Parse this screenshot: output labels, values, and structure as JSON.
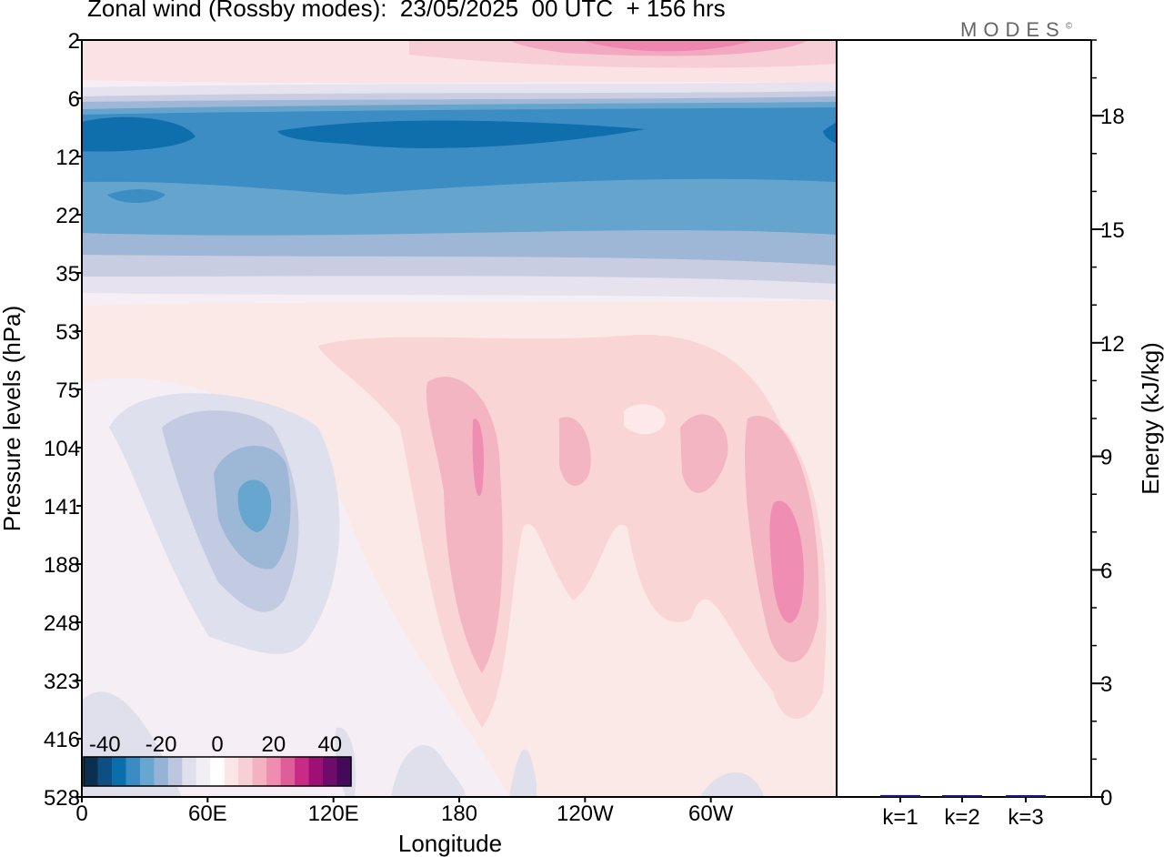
{
  "header": {
    "title": "Zonal wind (Rossby modes):  23/05/2025  00 UTC  + 156 hrs",
    "brand": "MODES",
    "brand_mark": "©"
  },
  "colors": {
    "scale": [
      "#0a2f4f",
      "#0c4f82",
      "#0a6eaa",
      "#3a8cc2",
      "#67a6ce",
      "#95b4d5",
      "#bdc6df",
      "#e0e0ed",
      "#f2eef5",
      "#ffffff",
      "#fbe6e6",
      "#f7cfd4",
      "#f4b1bf",
      "#f08caf",
      "#e05d9c",
      "#c92a85",
      "#9c1173",
      "#6e0b6b",
      "#44095a"
    ],
    "axis": "#000000"
  },
  "chart_data": {
    "type": "heatmap",
    "variable": "Zonal wind (Rossby modes)",
    "date": "23/05/2025",
    "time": "00 UTC",
    "lead": "+ 156 hrs",
    "xlabel": "Longitude",
    "ylabel": "Pressure levels (hPa)",
    "x_ticks": [
      "0",
      "60E",
      "120E",
      "180",
      "120W",
      "60W"
    ],
    "x_tick_positions_deg": [
      0,
      60,
      120,
      180,
      240,
      300
    ],
    "x_range_deg": [
      0,
      360
    ],
    "y_ticks": [
      "2",
      "6",
      "12",
      "22",
      "35",
      "53",
      "75",
      "104",
      "141",
      "188",
      "248",
      "323",
      "416",
      "528"
    ],
    "colorbar": {
      "tick_labels": [
        "-40",
        "-20",
        "0",
        "20",
        "40"
      ],
      "tick_values": [
        -40,
        -20,
        0,
        20,
        40
      ],
      "levels": [
        -45,
        -40,
        -35,
        -30,
        -25,
        -20,
        -15,
        -10,
        -5,
        0,
        5,
        10,
        15,
        20,
        25,
        30,
        35,
        40,
        45
      ]
    },
    "features": [
      {
        "lon": 60,
        "level": "12",
        "value": -30
      },
      {
        "lon": 270,
        "level": "2",
        "value": 20
      },
      {
        "lon": 82,
        "level": "141",
        "value": -15
      },
      {
        "lon": 188,
        "level": "141",
        "value": 15
      },
      {
        "lon": 336,
        "level": "188",
        "value": 15
      }
    ],
    "energy_panel": {
      "type": "bar",
      "ylabel": "Energy (kJ/kg)",
      "categories": [
        "k=1",
        "k=2",
        "k=3"
      ],
      "values": [
        0.05,
        0.02,
        0.02
      ],
      "ylim": [
        0,
        20
      ],
      "y_ticks": [
        "0",
        "3",
        "6",
        "9",
        "12",
        "15",
        "18"
      ],
      "y_tick_values": [
        0,
        3,
        6,
        9,
        12,
        15,
        18
      ]
    }
  }
}
